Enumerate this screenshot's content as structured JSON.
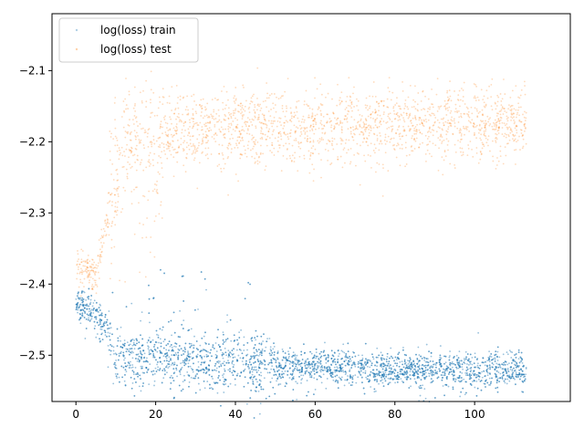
{
  "chart_data": {
    "type": "scatter",
    "title": "",
    "xlabel": "",
    "ylabel": "",
    "xlim": [
      -6,
      124
    ],
    "ylim": [
      -2.565,
      -2.02
    ],
    "xticks": [
      0,
      20,
      40,
      60,
      80,
      100
    ],
    "yticks": [
      -2.1,
      -2.2,
      -2.3,
      -2.4,
      -2.5
    ],
    "xtick_labels": [
      "0",
      "20",
      "40",
      "60",
      "80",
      "100"
    ],
    "ytick_labels": [
      "−2.1",
      "−2.2",
      "−2.3",
      "−2.4",
      "−2.5"
    ],
    "grid": false,
    "legend_position": "upper-left",
    "legend": [
      "log(loss) train",
      "log(loss) test"
    ],
    "series": [
      {
        "name": "log(loss) train",
        "color": "#1f77b4",
        "x_range": [
          0,
          113
        ],
        "trend_points": [
          {
            "x": 0,
            "y": -2.43
          },
          {
            "x": 5,
            "y": -2.44
          },
          {
            "x": 8,
            "y": -2.47
          },
          {
            "x": 10,
            "y": -2.5
          },
          {
            "x": 20,
            "y": -2.5
          },
          {
            "x": 40,
            "y": -2.515
          },
          {
            "x": 60,
            "y": -2.515
          },
          {
            "x": 80,
            "y": -2.52
          },
          {
            "x": 113,
            "y": -2.52
          }
        ]
      },
      {
        "name": "log(loss) test",
        "color": "#ff7f0e",
        "x_range": [
          0,
          113
        ],
        "trend_points": [
          {
            "x": 0,
            "y": -2.37
          },
          {
            "x": 5,
            "y": -2.39
          },
          {
            "x": 8,
            "y": -2.3
          },
          {
            "x": 12,
            "y": -2.2
          },
          {
            "x": 20,
            "y": -2.19
          },
          {
            "x": 40,
            "y": -2.18
          },
          {
            "x": 60,
            "y": -2.18
          },
          {
            "x": 80,
            "y": -2.175
          },
          {
            "x": 113,
            "y": -2.175
          }
        ]
      }
    ]
  }
}
